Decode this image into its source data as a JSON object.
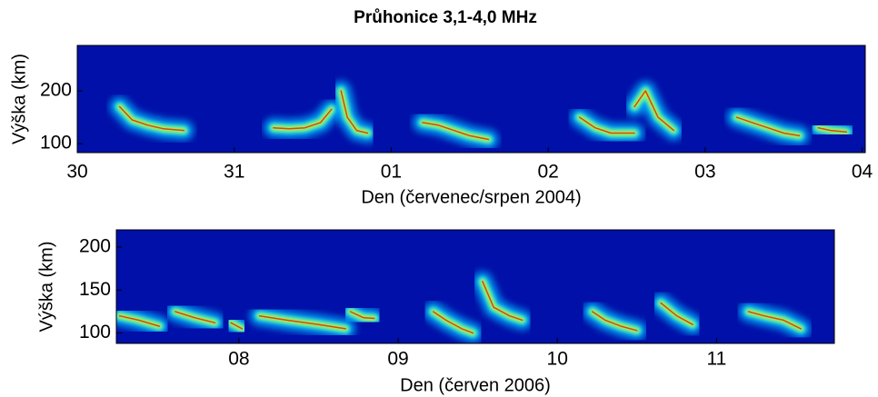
{
  "chart_data": [
    {
      "type": "heatmap-trace",
      "title": "Průhonice 3,1-4,0 MHz",
      "xlabel": "Den (červenec/srpen 2004)",
      "ylabel": "Výška (km)",
      "background": "#0010a8",
      "xlim": [
        0,
        5.02
      ],
      "ylim": [
        83,
        286
      ],
      "xticks": [
        {
          "value": 0,
          "label": "30"
        },
        {
          "value": 1,
          "label": "31"
        },
        {
          "value": 2,
          "label": "01"
        },
        {
          "value": 3,
          "label": "02"
        },
        {
          "value": 4,
          "label": "03"
        },
        {
          "value": 5,
          "label": "04"
        }
      ],
      "yticks": [
        100,
        200
      ],
      "series": [
        {
          "x": [
            0.27,
            0.35,
            0.45,
            0.55,
            0.68
          ],
          "values": [
            170,
            145,
            135,
            128,
            125
          ]
        },
        {
          "x": [
            1.25,
            1.35,
            1.45,
            1.55,
            1.62
          ],
          "values": [
            130,
            128,
            130,
            140,
            165
          ]
        },
        {
          "x": [
            1.68,
            1.72,
            1.78,
            1.85
          ],
          "values": [
            200,
            150,
            125,
            120
          ]
        },
        {
          "x": [
            2.2,
            2.3,
            2.4,
            2.5,
            2.62
          ],
          "values": [
            140,
            135,
            125,
            115,
            108
          ]
        },
        {
          "x": [
            3.2,
            3.3,
            3.4,
            3.55
          ],
          "values": [
            150,
            130,
            120,
            120
          ]
        },
        {
          "x": [
            3.55,
            3.62,
            3.7,
            3.8
          ],
          "values": [
            170,
            200,
            150,
            125
          ]
        },
        {
          "x": [
            4.2,
            4.3,
            4.4,
            4.5,
            4.6
          ],
          "values": [
            150,
            140,
            130,
            120,
            115
          ]
        },
        {
          "x": [
            4.72,
            4.8,
            4.9
          ],
          "values": [
            130,
            125,
            122
          ]
        }
      ]
    },
    {
      "type": "heatmap-trace",
      "xlabel": "Den (červen 2006)",
      "ylabel": "Výška (km)",
      "background": "#0010a8",
      "xlim": [
        7.23,
        11.74
      ],
      "ylim": [
        88,
        220
      ],
      "xticks": [
        {
          "value": 8,
          "label": "08"
        },
        {
          "value": 9,
          "label": "09"
        },
        10,
        11
      ],
      "yticks": [
        100,
        150,
        200
      ],
      "series": [
        {
          "x": [
            7.25,
            7.37,
            7.5
          ],
          "values": [
            120,
            115,
            108
          ]
        },
        {
          "x": [
            7.6,
            7.72,
            7.85
          ],
          "values": [
            125,
            118,
            112
          ]
        },
        {
          "x": [
            7.95,
            8.02
          ],
          "values": [
            112,
            105
          ]
        },
        {
          "x": [
            8.13,
            8.3,
            8.5,
            8.67
          ],
          "values": [
            120,
            115,
            110,
            105
          ]
        },
        {
          "x": [
            8.7,
            8.78,
            8.85
          ],
          "values": [
            125,
            118,
            117
          ]
        },
        {
          "x": [
            9.22,
            9.3,
            9.4,
            9.47
          ],
          "values": [
            125,
            115,
            105,
            100
          ]
        },
        {
          "x": [
            9.53,
            9.6,
            9.7,
            9.78
          ],
          "values": [
            160,
            130,
            120,
            115
          ]
        },
        {
          "x": [
            10.22,
            10.3,
            10.4,
            10.5
          ],
          "values": [
            125,
            115,
            108,
            103
          ]
        },
        {
          "x": [
            10.65,
            10.75,
            10.85
          ],
          "values": [
            135,
            120,
            110
          ]
        },
        {
          "x": [
            11.2,
            11.3,
            11.42,
            11.53
          ],
          "values": [
            125,
            120,
            115,
            105
          ]
        }
      ]
    }
  ]
}
